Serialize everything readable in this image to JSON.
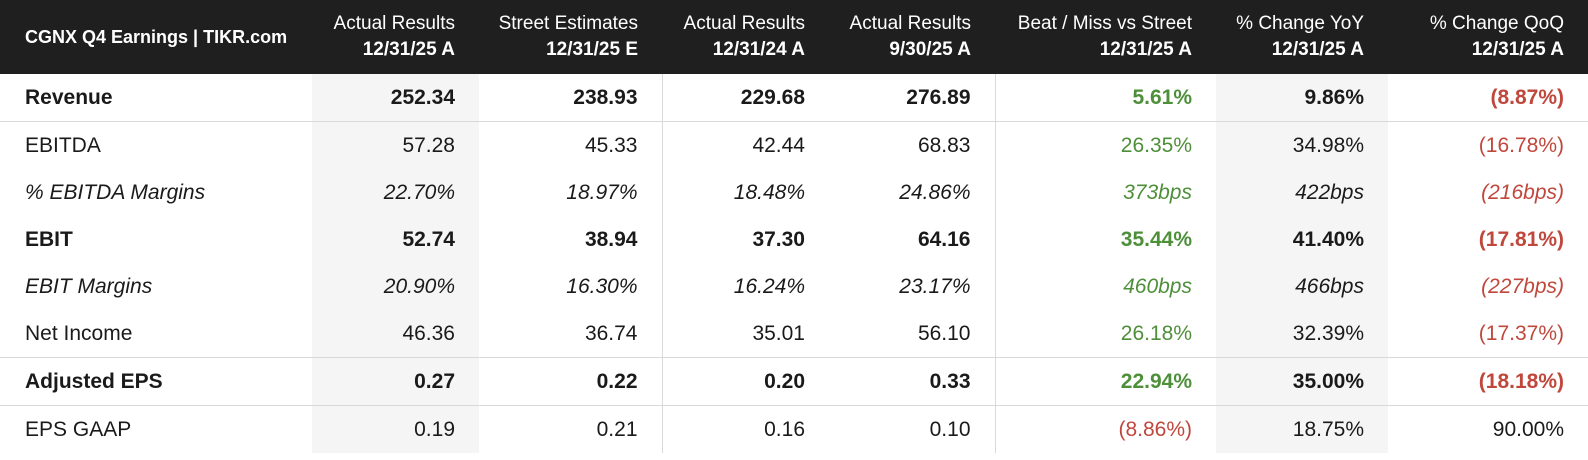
{
  "header": {
    "title": "CGNX Q4 Earnings | TIKR.com",
    "columns": [
      {
        "line1": "Actual Results",
        "line2": "12/31/25 A"
      },
      {
        "line1": "Street Estimates",
        "line2": "12/31/25 E"
      },
      {
        "line1": "Actual Results",
        "line2": "12/31/24 A"
      },
      {
        "line1": "Actual Results",
        "line2": "9/30/25 A"
      },
      {
        "line1": "Beat / Miss vs Street",
        "line2": "12/31/25 A"
      },
      {
        "line1": "% Change YoY",
        "line2": "12/31/25 A"
      },
      {
        "line1": "% Change QoQ",
        "line2": "12/31/25 A"
      }
    ]
  },
  "rows": [
    {
      "label": "Revenue",
      "values": [
        "252.34",
        "238.93",
        "229.68",
        "276.89",
        "5.61%",
        "9.86%",
        "(8.87%)"
      ]
    },
    {
      "label": "EBITDA",
      "values": [
        "57.28",
        "45.33",
        "42.44",
        "68.83",
        "26.35%",
        "34.98%",
        "(16.78%)"
      ]
    },
    {
      "label": "% EBITDA Margins",
      "values": [
        "22.70%",
        "18.97%",
        "18.48%",
        "24.86%",
        "373bps",
        "422bps",
        "(216bps)"
      ]
    },
    {
      "label": "EBIT",
      "values": [
        "52.74",
        "38.94",
        "37.30",
        "64.16",
        "35.44%",
        "41.40%",
        "(17.81%)"
      ]
    },
    {
      "label": "EBIT Margins",
      "values": [
        "20.90%",
        "16.30%",
        "16.24%",
        "23.17%",
        "460bps",
        "466bps",
        "(227bps)"
      ]
    },
    {
      "label": "Net Income",
      "values": [
        "46.36",
        "36.74",
        "35.01",
        "56.10",
        "26.18%",
        "32.39%",
        "(17.37%)"
      ]
    },
    {
      "label": "Adjusted EPS",
      "values": [
        "0.27",
        "0.22",
        "0.20",
        "0.33",
        "22.94%",
        "35.00%",
        "(18.18%)"
      ]
    },
    {
      "label": "EPS GAAP",
      "values": [
        "0.19",
        "0.21",
        "0.16",
        "0.10",
        "(8.86%)",
        "18.75%",
        "90.00%"
      ]
    }
  ],
  "colors": {
    "header_bg": "#1f1f1f",
    "positive": "#4e8f3a",
    "negative": "#c0473c",
    "shade": "#f5f5f5"
  }
}
